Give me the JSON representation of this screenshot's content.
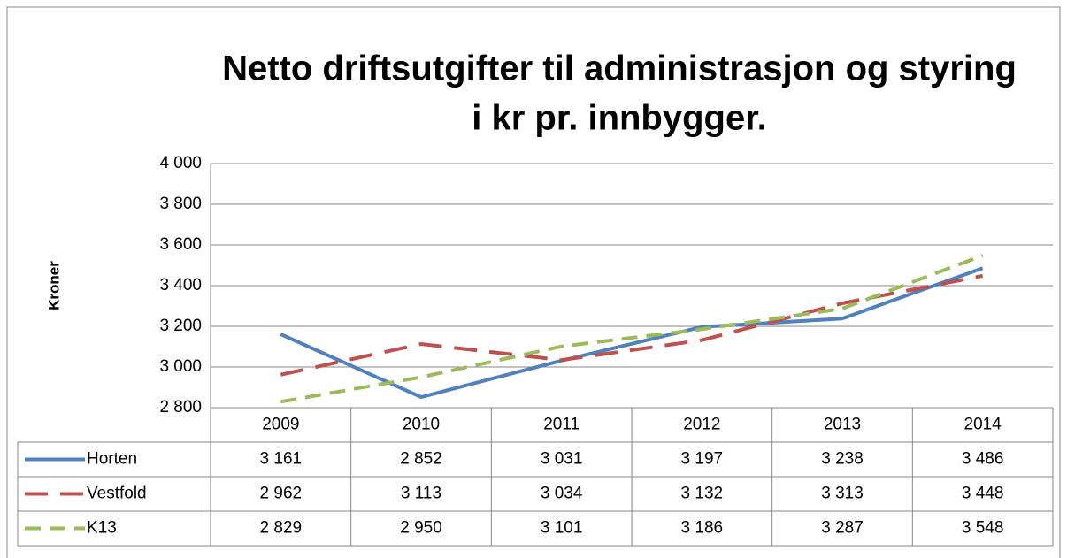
{
  "chart_data": {
    "type": "line",
    "title": [
      "Netto driftsutgifter til administrasjon og styring",
      "i kr pr. innbygger."
    ],
    "y_label": "Kroner",
    "categories": [
      "2009",
      "2010",
      "2011",
      "2012",
      "2013",
      "2014"
    ],
    "series": [
      {
        "name": "Horten",
        "color": "#4f81bd",
        "dash": "solid",
        "values": [
          3161,
          2852,
          3031,
          3197,
          3238,
          3486
        ],
        "value_labels": [
          "3 161",
          "2 852",
          "3 031",
          "3 197",
          "3 238",
          "3 486"
        ]
      },
      {
        "name": "Vestfold",
        "color": "#c0504d",
        "dash": "dashed",
        "values": [
          2962,
          3113,
          3034,
          3132,
          3313,
          3448
        ],
        "value_labels": [
          "2 962",
          "3 113",
          "3 034",
          "3 132",
          "3 313",
          "3 448"
        ]
      },
      {
        "name": "K13",
        "color": "#9bbb59",
        "dash": "dashed",
        "values": [
          2829,
          2950,
          3101,
          3186,
          3287,
          3548
        ],
        "value_labels": [
          "2 829",
          "2 950",
          "3 101",
          "3 186",
          "3 287",
          "3 548"
        ]
      }
    ],
    "ylim": [
      2800,
      4000
    ],
    "yticks": [
      {
        "value": 2800,
        "label": "2 800"
      },
      {
        "value": 3000,
        "label": "3 000"
      },
      {
        "value": 3200,
        "label": "3 200"
      },
      {
        "value": 3400,
        "label": "3 400"
      },
      {
        "value": 3600,
        "label": "3 600"
      },
      {
        "value": 3800,
        "label": "3 800"
      },
      {
        "value": 4000,
        "label": "4 000"
      }
    ],
    "grid": true
  }
}
